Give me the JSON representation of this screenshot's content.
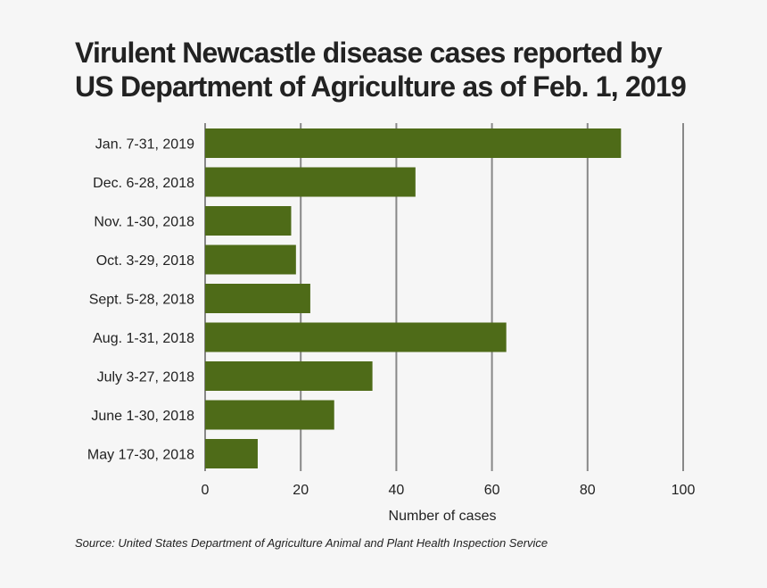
{
  "chart_data": {
    "type": "bar",
    "orientation": "horizontal",
    "title_lines": [
      "Virulent Newcastle disease cases reported by",
      "US Department of Agriculture as of Feb. 1, 2019"
    ],
    "categories": [
      "Jan. 7-31, 2019",
      "Dec. 6-28, 2018",
      "Nov. 1-30, 2018",
      "Oct. 3-29, 2018",
      "Sept. 5-28, 2018",
      "Aug. 1-31, 2018",
      "July 3-27, 2018",
      "June 1-30, 2018",
      "May 17-30, 2018"
    ],
    "values": [
      87,
      44,
      18,
      19,
      22,
      63,
      35,
      27,
      11
    ],
    "xlabel": "Number of cases",
    "ylabel": "",
    "xlim": [
      0,
      100
    ],
    "xticks": [
      0,
      20,
      40,
      60,
      80,
      100
    ],
    "grid": true,
    "bar_color": "#4e6b18",
    "grid_color": "#888888",
    "source": "Source: United States Department of Agriculture Animal and Plant Health Inspection Service"
  }
}
